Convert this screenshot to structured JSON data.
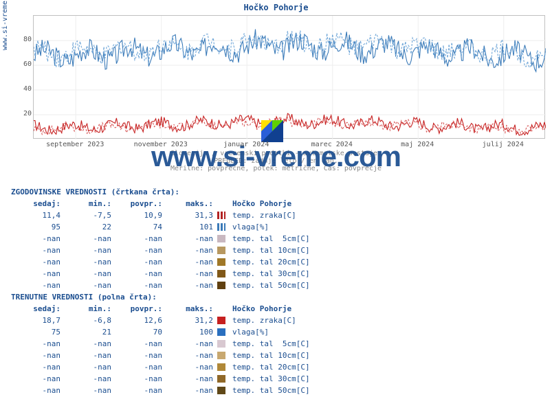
{
  "title": "Hočko Pohorje",
  "ylabel": "www.si-vreme.com",
  "watermark": "www.si-vreme.com",
  "caption_lines": [
    "Slovenija / vremenski podatki - avtomatske postaje.",
    "PREGLED: zadnje leto / en dan.",
    "Merilne: povprečne, potek: metrične, Čas: povprečje"
  ],
  "chart": {
    "type": "line",
    "xlim": [
      0,
      365
    ],
    "ylim": [
      0,
      100
    ],
    "ytick_step": 20,
    "yticks": [
      20,
      40,
      60,
      80
    ],
    "xtick_labels": [
      "september 2023",
      "november 2023",
      "januar 2024",
      "marec 2024",
      "maj 2024",
      "julij 2024"
    ],
    "xtick_positions": [
      30,
      91,
      152,
      213,
      274,
      335
    ],
    "background_color": "#ffffff",
    "grid_color": "#eeeeee",
    "series": [
      {
        "name": "vlaga-solid",
        "color": "#3a7ab8",
        "dash": false,
        "mean": 72,
        "amplitude": 14,
        "noise": 8
      },
      {
        "name": "vlaga-dash",
        "color": "#6fa6d8",
        "dash": true,
        "mean": 74,
        "amplitude": 14,
        "noise": 7
      },
      {
        "name": "temp-solid",
        "color": "#c62020",
        "dash": false,
        "mean": 12,
        "amplitude": 8,
        "noise": 4
      },
      {
        "name": "temp-dash",
        "color": "#d85a5a",
        "dash": true,
        "mean": 11,
        "amplitude": 8,
        "noise": 3
      }
    ]
  },
  "historic": {
    "title": "ZGODOVINSKE VREDNOSTI (črtkana črta):",
    "headers": [
      "sedaj:",
      "min.:",
      "povpr.:",
      "maks.:"
    ],
    "loc_title": "Hočko Pohorje",
    "rows": [
      {
        "vals": [
          "11,4",
          "-7,5",
          "10,9",
          "31,3"
        ],
        "sw": "sw-dash-red",
        "label": "temp. zraka[C]"
      },
      {
        "vals": [
          "95",
          "22",
          "74",
          "101"
        ],
        "sw": "sw-dash-blue",
        "label": "vlaga[%]"
      },
      {
        "vals": [
          "-nan",
          "-nan",
          "-nan",
          "-nan"
        ],
        "sw": "#c9b8c0",
        "label": "temp. tal  5cm[C]"
      },
      {
        "vals": [
          "-nan",
          "-nan",
          "-nan",
          "-nan"
        ],
        "sw": "#b89860",
        "label": "temp. tal 10cm[C]"
      },
      {
        "vals": [
          "-nan",
          "-nan",
          "-nan",
          "-nan"
        ],
        "sw": "#a07828",
        "label": "temp. tal 20cm[C]"
      },
      {
        "vals": [
          "-nan",
          "-nan",
          "-nan",
          "-nan"
        ],
        "sw": "#805818",
        "label": "temp. tal 30cm[C]"
      },
      {
        "vals": [
          "-nan",
          "-nan",
          "-nan",
          "-nan"
        ],
        "sw": "#604010",
        "label": "temp. tal 50cm[C]"
      }
    ]
  },
  "current": {
    "title": "TRENUTNE VREDNOSTI (polna črta):",
    "headers": [
      "sedaj:",
      "min.:",
      "povpr.:",
      "maks.:"
    ],
    "loc_title": "Hočko Pohorje",
    "rows": [
      {
        "vals": [
          "18,7",
          "-6,8",
          "12,6",
          "31,2"
        ],
        "sw": "sw-solid-red",
        "label": "temp. zraka[C]"
      },
      {
        "vals": [
          "75",
          "21",
          "70",
          "100"
        ],
        "sw": "sw-solid-blue",
        "label": "vlaga[%]"
      },
      {
        "vals": [
          "-nan",
          "-nan",
          "-nan",
          "-nan"
        ],
        "sw": "#d8c8d0",
        "label": "temp. tal  5cm[C]"
      },
      {
        "vals": [
          "-nan",
          "-nan",
          "-nan",
          "-nan"
        ],
        "sw": "#c8a870",
        "label": "temp. tal 10cm[C]"
      },
      {
        "vals": [
          "-nan",
          "-nan",
          "-nan",
          "-nan"
        ],
        "sw": "#b08838",
        "label": "temp. tal 20cm[C]"
      },
      {
        "vals": [
          "-nan",
          "-nan",
          "-nan",
          "-nan"
        ],
        "sw": "#906828",
        "label": "temp. tal 30cm[C]"
      },
      {
        "vals": [
          "-nan",
          "-nan",
          "-nan",
          "-nan"
        ],
        "sw": "#604818",
        "label": "temp. tal 50cm[C]"
      }
    ]
  }
}
